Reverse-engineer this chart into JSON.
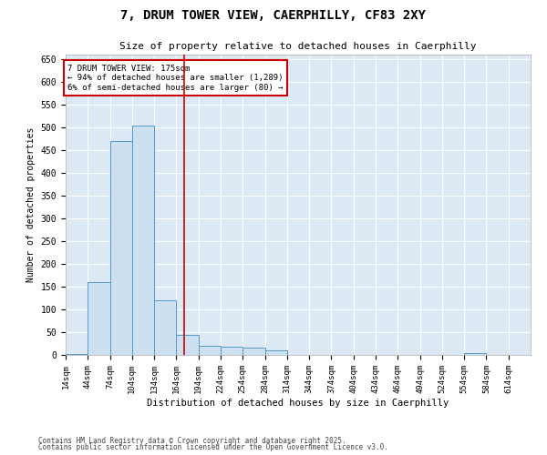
{
  "title_line1": "7, DRUM TOWER VIEW, CAERPHILLY, CF83 2XY",
  "title_line2": "Size of property relative to detached houses in Caerphilly",
  "xlabel": "Distribution of detached houses by size in Caerphilly",
  "ylabel": "Number of detached properties",
  "bar_color": "#cce0f0",
  "bar_edge_color": "#5599cc",
  "background_color": "#dce9f5",
  "grid_color": "#ffffff",
  "annotation_box_color": "#cc0000",
  "vline_color": "#cc0000",
  "vline_x": 175,
  "annotation_text": "7 DRUM TOWER VIEW: 175sqm\n← 94% of detached houses are smaller (1,289)\n6% of semi-detached houses are larger (80) →",
  "bins_start": 14,
  "bin_width": 30,
  "num_bins": 21,
  "bar_heights": [
    2,
    160,
    470,
    505,
    120,
    45,
    20,
    18,
    16,
    10,
    0,
    0,
    0,
    0,
    0,
    0,
    0,
    0,
    5,
    0,
    0
  ],
  "xlim_min": 14,
  "xlim_max": 644,
  "ylim_min": 0,
  "ylim_max": 660,
  "yticks": [
    0,
    50,
    100,
    150,
    200,
    250,
    300,
    350,
    400,
    450,
    500,
    550,
    600,
    650
  ],
  "footnote1": "Contains HM Land Registry data © Crown copyright and database right 2025.",
  "footnote2": "Contains public sector information licensed under the Open Government Licence v3.0."
}
